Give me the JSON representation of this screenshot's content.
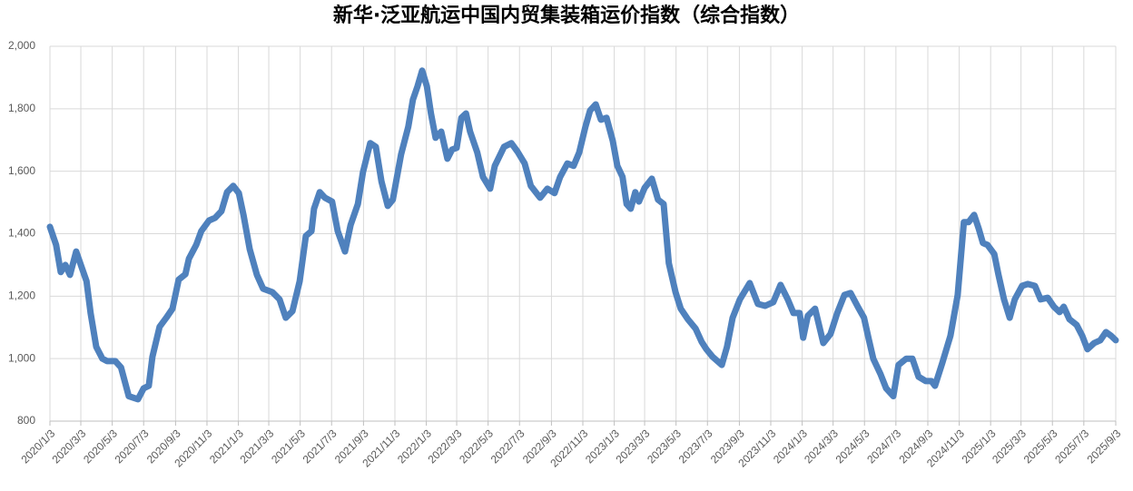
{
  "chart_data": {
    "type": "line",
    "title": "新华·泛亚航运中国内贸集装箱运价指数（综合指数）",
    "color": "#4f81bd",
    "grid": true,
    "xlim": [
      "2020/1/3",
      "2025/9/3"
    ],
    "xticks": [
      "2020/1/3",
      "2020/3/3",
      "2020/5/3",
      "2020/7/3",
      "2020/9/3",
      "2020/11/3",
      "2021/1/3",
      "2021/3/3",
      "2021/5/3",
      "2021/7/3",
      "2021/9/3",
      "2021/11/3",
      "2022/1/3",
      "2022/3/3",
      "2022/5/3",
      "2022/7/3",
      "2022/9/3",
      "2022/11/3",
      "2023/1/3",
      "2023/3/3",
      "2023/5/3",
      "2023/7/3",
      "2023/9/3",
      "2023/11/3",
      "2024/1/3",
      "2024/3/3",
      "2024/5/3",
      "2024/7/3",
      "2024/9/3",
      "2024/11/3",
      "2025/1/3",
      "2025/3/3",
      "2025/5/3",
      "2025/7/3",
      "2025/9/3"
    ],
    "ylim": [
      800,
      2000
    ],
    "yticks": [
      800,
      {
        "value": 1000,
        "label": "1,000"
      },
      {
        "value": 1200,
        "label": "1,200"
      },
      {
        "value": 1400,
        "label": "1,400"
      },
      {
        "value": 1600,
        "label": "1,600"
      },
      {
        "value": 1800,
        "label": "1,800"
      },
      {
        "value": 2000,
        "label": "2,000"
      }
    ],
    "x": [
      "2020/1/3",
      "2020/1/15",
      "2020/1/24",
      "2020/2/2",
      "2020/2/11",
      "2020/2/23",
      "2020/3/14",
      "2020/3/22",
      "2020/4/2",
      "2020/4/14",
      "2020/4/23",
      "2020/5/9",
      "2020/5/20",
      "2020/6/4",
      "2020/6/22",
      "2020/7/3",
      "2020/7/13",
      "2020/7/20",
      "2020/8/3",
      "2020/8/16",
      "2020/8/28",
      "2020/9/9",
      "2020/9/22",
      "2020/9/29",
      "2020/10/13",
      "2020/10/23",
      "2020/11/7",
      "2020/11/19",
      "2020/12/1",
      "2020/12/12",
      "2020/12/24",
      "2021/1/4",
      "2021/1/13",
      "2021/1/25",
      "2021/2/8",
      "2021/2/20",
      "2021/3/10",
      "2021/3/24",
      "2021/4/5",
      "2021/4/18",
      "2021/5/2",
      "2021/5/14",
      "2021/5/25",
      "2021/5/30",
      "2021/6/10",
      "2021/6/20",
      "2021/7/4",
      "2021/7/15",
      "2021/7/29",
      "2021/8/9",
      "2021/8/23",
      "2021/9/2",
      "2021/9/16",
      "2021/9/27",
      "2021/10/8",
      "2021/10/20",
      "2021/10/30",
      "2021/11/15",
      "2021/11/29",
      "2021/12/8",
      "2021/12/17",
      "2021/12/26",
      "2022/1/4",
      "2022/1/12",
      "2022/1/21",
      "2022/2/1",
      "2022/2/13",
      "2022/2/22",
      "2022/3/3",
      "2022/3/12",
      "2022/3/21",
      "2022/3/29",
      "2022/4/12",
      "2022/4/23",
      "2022/5/7",
      "2022/5/16",
      "2022/6/3",
      "2022/6/17",
      "2022/6/29",
      "2022/7/13",
      "2022/7/25",
      "2022/8/12",
      "2022/8/26",
      "2022/9/9",
      "2022/9/20",
      "2022/10/4",
      "2022/10/16",
      "2022/10/27",
      "2022/11/8",
      "2022/11/17",
      "2022/11/28",
      "2022/12/8",
      "2022/12/19",
      "2022/12/31",
      "2023/1/9",
      "2023/1/19",
      "2023/1/27",
      "2023/2/4",
      "2023/2/13",
      "2023/2/20",
      "2023/3/3",
      "2023/3/17",
      "2023/3/29",
      "2023/4/9",
      "2023/4/19",
      "2023/5/2",
      "2023/5/12",
      "2023/5/26",
      "2023/6/10",
      "2023/6/22",
      "2023/7/1",
      "2023/7/13",
      "2023/7/31",
      "2023/8/10",
      "2023/8/21",
      "2023/9/4",
      "2023/9/23",
      "2023/10/9",
      "2023/10/23",
      "2023/11/8",
      "2023/11/22",
      "2023/12/6",
      "2023/12/17",
      "2023/12/29",
      "2024/1/5",
      "2024/1/14",
      "2024/1/28",
      "2024/2/13",
      "2024/2/27",
      "2024/3/11",
      "2024/3/25",
      "2024/4/6",
      "2024/4/20",
      "2024/5/2",
      "2024/5/11",
      "2024/5/20",
      "2024/6/3",
      "2024/6/14",
      "2024/6/28",
      "2024/7/8",
      "2024/7/23",
      "2024/8/4",
      "2024/8/16",
      "2024/8/30",
      "2024/9/10",
      "2024/9/17",
      "2024/10/1",
      "2024/10/17",
      "2024/10/31",
      "2024/11/12",
      "2024/11/21",
      "2024/12/2",
      "2024/12/11",
      "2024/12/19",
      "2024/12/28",
      "2025/1/10",
      "2025/1/18",
      "2025/1/29",
      "2025/2/9",
      "2025/2/19",
      "2025/3/5",
      "2025/3/16",
      "2025/3/30",
      "2025/4/10",
      "2025/4/24",
      "2025/5/6",
      "2025/5/17",
      "2025/5/25",
      "2025/6/5",
      "2025/6/19",
      "2025/6/30",
      "2025/7/10",
      "2025/7/23",
      "2025/8/4",
      "2025/8/15",
      "2025/8/25",
      "2025/9/3"
    ],
    "values": [
      1422,
      1364,
      1277,
      1300,
      1268,
      1343,
      1248,
      1146,
      1038,
      1000,
      992,
      992,
      972,
      880,
      870,
      905,
      913,
      1006,
      1102,
      1131,
      1160,
      1253,
      1270,
      1320,
      1364,
      1408,
      1442,
      1451,
      1472,
      1533,
      1553,
      1530,
      1460,
      1350,
      1268,
      1224,
      1213,
      1190,
      1131,
      1152,
      1248,
      1393,
      1408,
      1480,
      1533,
      1515,
      1503,
      1408,
      1343,
      1428,
      1495,
      1597,
      1690,
      1678,
      1567,
      1489,
      1509,
      1654,
      1742,
      1829,
      1872,
      1922,
      1872,
      1785,
      1707,
      1727,
      1640,
      1669,
      1675,
      1771,
      1785,
      1727,
      1660,
      1582,
      1544,
      1617,
      1678,
      1690,
      1663,
      1625,
      1553,
      1515,
      1544,
      1530,
      1582,
      1625,
      1617,
      1660,
      1742,
      1794,
      1814,
      1765,
      1771,
      1698,
      1617,
      1582,
      1495,
      1480,
      1533,
      1503,
      1547,
      1576,
      1509,
      1495,
      1306,
      1213,
      1160,
      1126,
      1096,
      1053,
      1030,
      1006,
      980,
      1038,
      1131,
      1190,
      1242,
      1175,
      1169,
      1181,
      1236,
      1190,
      1146,
      1146,
      1067,
      1137,
      1160,
      1050,
      1079,
      1146,
      1204,
      1210,
      1166,
      1131,
      1064,
      1000,
      951,
      905,
      880,
      980,
      1000,
      1000,
      942,
      928,
      928,
      913,
      986,
      1073,
      1204,
      1437,
      1437,
      1460,
      1416,
      1370,
      1364,
      1335,
      1270,
      1190,
      1131,
      1190,
      1233,
      1239,
      1233,
      1190,
      1195,
      1166,
      1149,
      1166,
      1126,
      1108,
      1073,
      1030,
      1050,
      1059,
      1085,
      1073,
      1059
    ]
  }
}
